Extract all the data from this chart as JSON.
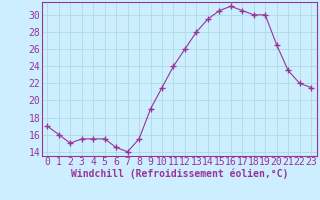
{
  "x": [
    0,
    1,
    2,
    3,
    4,
    5,
    6,
    7,
    8,
    9,
    10,
    11,
    12,
    13,
    14,
    15,
    16,
    17,
    18,
    19,
    20,
    21,
    22,
    23
  ],
  "y": [
    17,
    16,
    15,
    15.5,
    15.5,
    15.5,
    14.5,
    14,
    15.5,
    19,
    21.5,
    24,
    26,
    28,
    29.5,
    30.5,
    31,
    30.5,
    30,
    30,
    26.5,
    23.5,
    22,
    21.5
  ],
  "line_color": "#993399",
  "marker": "+",
  "marker_size": 4,
  "bg_color": "#cceeff",
  "grid_color": "#aadddd",
  "xlabel": "Windchill (Refroidissement éolien,°C)",
  "xlabel_fontsize": 7,
  "tick_fontsize": 7,
  "ylim": [
    13.5,
    31.5
  ],
  "yticks": [
    14,
    16,
    18,
    20,
    22,
    24,
    26,
    28,
    30
  ],
  "xlim": [
    -0.5,
    23.5
  ],
  "xticks": [
    0,
    1,
    2,
    3,
    4,
    5,
    6,
    7,
    8,
    9,
    10,
    11,
    12,
    13,
    14,
    15,
    16,
    17,
    18,
    19,
    20,
    21,
    22,
    23
  ],
  "spine_color": "#993399",
  "axis_color": "#993399"
}
